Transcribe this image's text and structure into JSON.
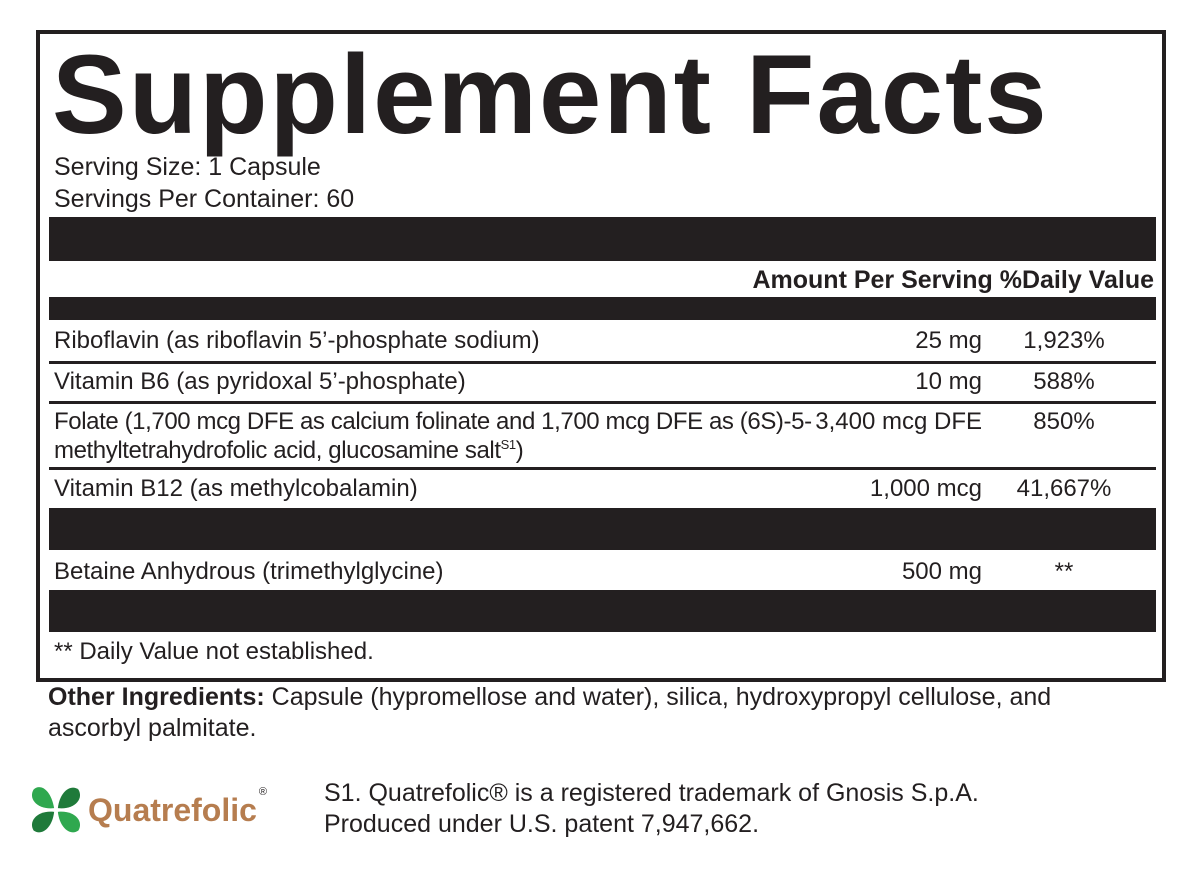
{
  "title": "Supplement Facts",
  "serving_size": "Serving Size: 1 Capsule",
  "servings_per_container": "Servings Per Container: 60",
  "header": {
    "amount": "Amount Per Serving",
    "dv": "%Daily Value"
  },
  "rows": [
    {
      "name": "Riboflavin (as riboflavin 5’-phosphate sodium)",
      "amount": "25 mg",
      "dv": "1,923%"
    },
    {
      "name": "Vitamin B6 (as pyridoxal 5’-phosphate)",
      "amount": "10 mg",
      "dv": "588%"
    },
    {
      "name": "Folate (1,700 mcg DFE as calcium folinate and 1,700 mcg DFE as (6S)-5-methyltetrahydrofolic acid, glucosamine salt",
      "sup": "S1",
      "name_end": ")",
      "amount": "3,400 mcg DFE",
      "dv": "850%"
    },
    {
      "name": "Vitamin B12 (as methylcobalamin)",
      "amount": "1,000 mcg",
      "dv": "41,667%"
    },
    {
      "name": "Betaine Anhydrous (trimethylglycine)",
      "amount": "500 mg",
      "dv": "**"
    }
  ],
  "footnote": "** Daily Value not established.",
  "other_ingredients": {
    "label": "Other Ingredients:",
    "text": " Capsule (hypromellose and water), silica, hydroxypropyl cellulose, and ascorbyl palmitate."
  },
  "logo": {
    "text": "Quatrefolic",
    "reg": "®",
    "color": "#b67d4f",
    "icon": "four-leaf-clover-icon"
  },
  "trademark_note": {
    "line1": "S1. Quatrefolic® is a registered trademark of Gnosis S.p.A.",
    "line2": "Produced under U.S. patent 7,947,662."
  }
}
